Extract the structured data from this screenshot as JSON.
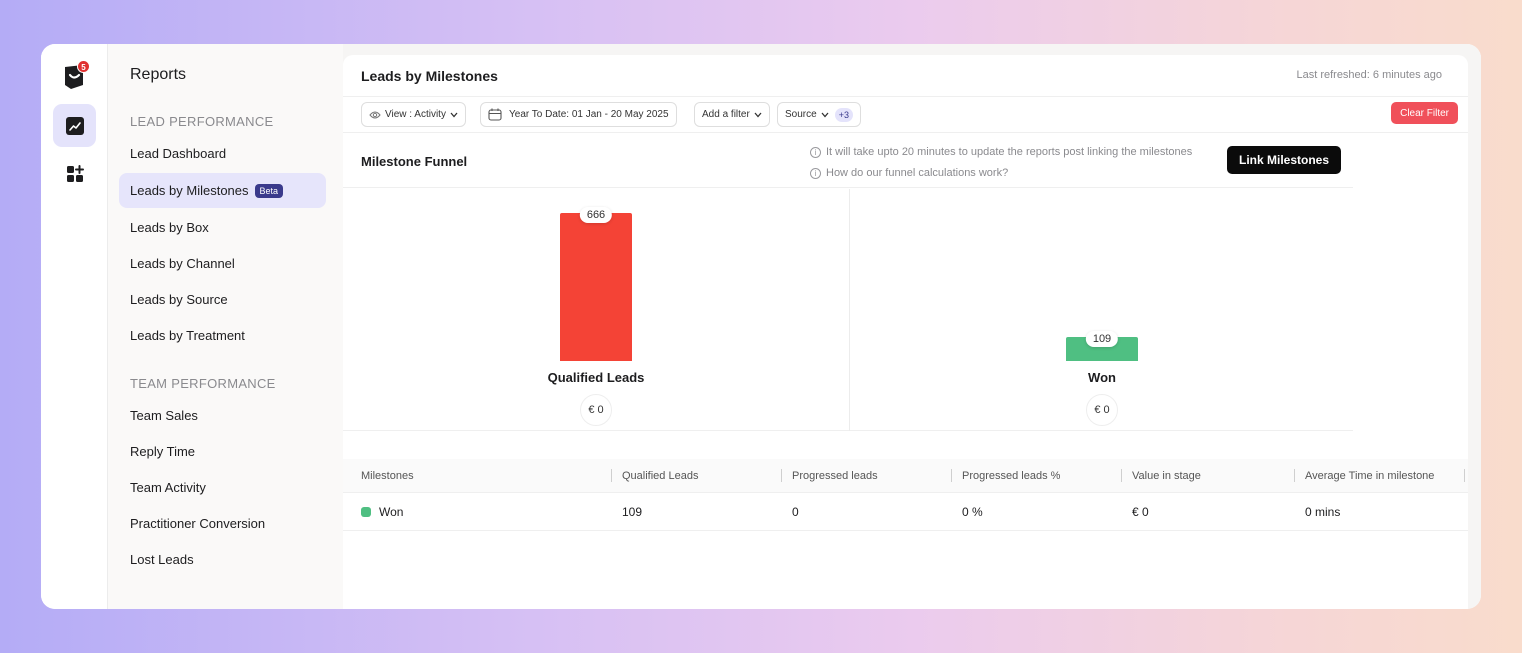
{
  "app": {
    "notification_count": "5",
    "accent": "#3a3a8c"
  },
  "sidebar": {
    "title": "Reports",
    "sections": [
      {
        "label": "LEAD PERFORMANCE",
        "items": [
          {
            "label": "Lead Dashboard"
          },
          {
            "label": "Leads by Milestones",
            "badge": "Beta",
            "active": true
          },
          {
            "label": "Leads by Box"
          },
          {
            "label": "Leads by Channel"
          },
          {
            "label": "Leads by Source"
          },
          {
            "label": "Leads by Treatment"
          }
        ]
      },
      {
        "label": "TEAM PERFORMANCE",
        "items": [
          {
            "label": "Team Sales"
          },
          {
            "label": "Reply Time"
          },
          {
            "label": "Team Activity"
          },
          {
            "label": "Practitioner Conversion"
          },
          {
            "label": "Lost Leads"
          }
        ]
      }
    ]
  },
  "header": {
    "title": "Leads by Milestones",
    "refreshed": "Last refreshed: 6 minutes ago"
  },
  "filters": {
    "view": "View : Activity",
    "date_range": "Year To Date: 01 Jan - 20 May 2025",
    "add_filter": "Add a filter",
    "source": "Source",
    "source_extra": "+3",
    "clear": "Clear Filter"
  },
  "funnel": {
    "title": "Milestone Funnel",
    "info_1": "It will take upto 20 minutes to update the reports post linking the milestones",
    "info_2": "How do our funnel calculations work?",
    "link_button": "Link Milestones",
    "stages": [
      {
        "name": "Qualified Leads",
        "count": "666",
        "value": "€ 0",
        "color": "#f44336",
        "fraction": 1.0
      },
      {
        "name": "Won",
        "count": "109",
        "value": "€ 0",
        "color": "#4fbf82",
        "fraction": 0.164
      }
    ]
  },
  "table": {
    "columns": [
      "Milestones",
      "Qualified Leads",
      "Progressed leads",
      "Progressed leads %",
      "Value in stage",
      "Average Time in milestone"
    ],
    "rows": [
      {
        "milestone": "Won",
        "qualified": "109",
        "progressed": "0",
        "progressed_pct": "0 %",
        "value": "€ 0",
        "avg_time": "0 mins",
        "color": "#4fbf82"
      }
    ]
  }
}
